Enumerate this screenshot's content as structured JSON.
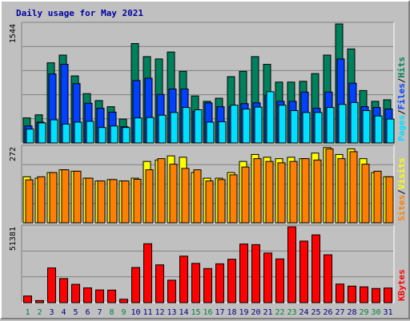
{
  "title": "Daily usage for May 2021",
  "colors": {
    "background": "#c0c0c0",
    "plot_background": "#c0c0c0",
    "grid": "#808080",
    "hits": "#00805c",
    "files": "#0040ff",
    "pages": "#00e0ff",
    "visits": "#ffff00",
    "sites": "#ff8000",
    "kbytes": "#ff0000",
    "weekday_label": "#000080",
    "weekend_label": "#008040",
    "title": "#0000a0"
  },
  "chart_data": [
    {
      "type": "bar",
      "name": "hits-files-pages",
      "categories": [
        "1",
        "2",
        "3",
        "4",
        "5",
        "6",
        "7",
        "8",
        "9",
        "10",
        "11",
        "12",
        "13",
        "14",
        "15",
        "16",
        "17",
        "18",
        "19",
        "20",
        "21",
        "22",
        "23",
        "24",
        "25",
        "26",
        "27",
        "28",
        "29",
        "30",
        "31"
      ],
      "weekend_days": [
        "1",
        "2",
        "8",
        "9",
        "15",
        "16",
        "22",
        "23",
        "29",
        "30"
      ],
      "ymax_label": "1544",
      "ylim": [
        0,
        1544
      ],
      "legend": [
        "Pages",
        "Files",
        "Hits"
      ],
      "series": [
        {
          "name": "Hits",
          "color_key": "hits",
          "values": [
            325,
            365,
            1040,
            1140,
            870,
            640,
            550,
            470,
            310,
            1290,
            1120,
            1090,
            1180,
            930,
            610,
            540,
            580,
            860,
            930,
            1120,
            1020,
            790,
            790,
            800,
            900,
            1140,
            1544,
            1220,
            680,
            540,
            560
          ]
        },
        {
          "name": "Files",
          "color_key": "files",
          "values": [
            220,
            270,
            895,
            1020,
            770,
            515,
            450,
            400,
            210,
            810,
            840,
            630,
            700,
            700,
            410,
            520,
            470,
            470,
            510,
            520,
            620,
            540,
            540,
            660,
            450,
            660,
            1090,
            775,
            470,
            460,
            440
          ]
        },
        {
          "name": "Pages",
          "color_key": "pages",
          "values": [
            180,
            260,
            300,
            245,
            270,
            280,
            200,
            220,
            200,
            325,
            330,
            360,
            395,
            460,
            430,
            270,
            275,
            490,
            440,
            465,
            665,
            490,
            420,
            395,
            395,
            460,
            500,
            525,
            420,
            350,
            310
          ]
        }
      ]
    },
    {
      "type": "bar",
      "name": "visits-sites",
      "categories": [
        "1",
        "2",
        "3",
        "4",
        "5",
        "6",
        "7",
        "8",
        "9",
        "10",
        "11",
        "12",
        "13",
        "14",
        "15",
        "16",
        "17",
        "18",
        "19",
        "20",
        "21",
        "22",
        "23",
        "24",
        "25",
        "26",
        "27",
        "28",
        "29",
        "30",
        "31"
      ],
      "ymax_label": "272",
      "ylim": [
        0,
        272
      ],
      "legend": [
        "Sites",
        "Visits"
      ],
      "series": [
        {
          "name": "Visits",
          "color_key": "visits",
          "values": [
            165,
            160,
            180,
            190,
            185,
            160,
            150,
            155,
            150,
            160,
            220,
            225,
            240,
            235,
            180,
            160,
            160,
            180,
            220,
            245,
            235,
            230,
            235,
            230,
            250,
            270,
            245,
            265,
            230,
            180,
            165
          ]
        },
        {
          "name": "Sites",
          "color_key": "sites",
          "values": [
            154,
            165,
            180,
            190,
            185,
            160,
            150,
            155,
            150,
            156,
            190,
            230,
            210,
            195,
            190,
            150,
            155,
            172,
            200,
            230,
            220,
            215,
            220,
            230,
            225,
            265,
            230,
            255,
            210,
            185,
            165
          ]
        }
      ]
    },
    {
      "type": "bar",
      "name": "kbytes",
      "categories": [
        "1",
        "2",
        "3",
        "4",
        "5",
        "6",
        "7",
        "8",
        "9",
        "10",
        "11",
        "12",
        "13",
        "14",
        "15",
        "16",
        "17",
        "18",
        "19",
        "20",
        "21",
        "22",
        "23",
        "24",
        "25",
        "26",
        "27",
        "28",
        "29",
        "30",
        "31"
      ],
      "ymax_label": "51381",
      "ylim": [
        0,
        51381
      ],
      "legend": [
        "KBytes"
      ],
      "series": [
        {
          "name": "KBytes",
          "color_key": "kbytes",
          "values": [
            4500,
            1400,
            23500,
            16300,
            12400,
            10000,
            8600,
            8500,
            2300,
            23800,
            39900,
            25600,
            15200,
            31500,
            26600,
            23100,
            26300,
            29400,
            39700,
            39300,
            33600,
            29600,
            51381,
            41700,
            45900,
            32400,
            12600,
            11200,
            10700,
            9600,
            9900
          ]
        }
      ]
    }
  ]
}
